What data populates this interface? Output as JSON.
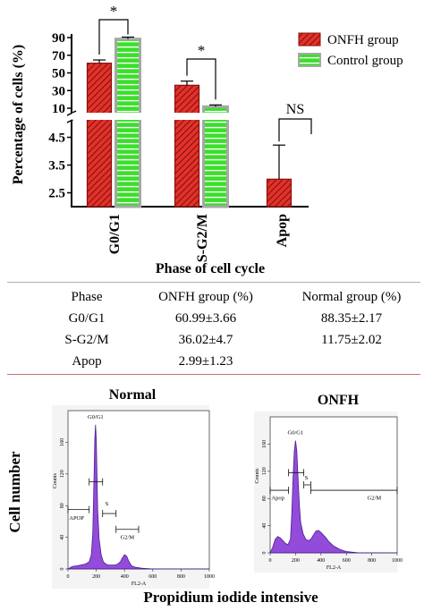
{
  "colors": {
    "onfh_fill": "#e0332b",
    "onfh_hatch": "#8b0d0d",
    "control_fill": "#3adf2a",
    "control_edge": "#a7a7a7",
    "flow_fill": "#8a3cd6",
    "flow_line": "#3a0f8a",
    "rule_top": "#b0b0b0",
    "rule_bottom": "#c87070"
  },
  "chart_data": [
    {
      "type": "bar",
      "xlabel": "Phase  of cell cycle",
      "ylabel": "Percentage of cells (%)",
      "axis_break": true,
      "upper_ticks": [
        "90",
        "70",
        "50",
        "30",
        "10"
      ],
      "lower_ticks": [
        "4.5",
        "3.5",
        "2.5"
      ],
      "categories": [
        "G0/G1",
        "S-G2/M",
        "Apop"
      ],
      "series": [
        {
          "name": "ONFH group",
          "values": [
            60.99,
            36.02,
            2.99
          ],
          "errors": [
            3.66,
            4.7,
            1.23
          ]
        },
        {
          "name": "Control group",
          "values": [
            88.35,
            11.75,
            null
          ],
          "errors": [
            2.17,
            2.02,
            null
          ]
        }
      ],
      "annotations": [
        "*",
        "*",
        "NS"
      ],
      "legend": "top-right"
    },
    {
      "type": "table",
      "columns": [
        "Phase",
        "ONFH group (%)",
        "Normal group (%)"
      ],
      "rows": [
        [
          "G0/G1",
          "60.99±3.66",
          "88.35±2.17"
        ],
        [
          "S-G2/M",
          "36.02±4.7",
          "11.75±2.02"
        ],
        [
          "Apop",
          "2.99±1.23",
          ""
        ]
      ]
    },
    {
      "type": "area",
      "title": "Normal",
      "xlabel": "FL2-A",
      "ylabel": "Counts",
      "x_ticks": [
        "0",
        "200",
        "400",
        "600",
        "800",
        "1000"
      ],
      "y_ticks": [
        "0",
        "40",
        "80",
        "120",
        "160"
      ],
      "xlim": [
        0,
        1000
      ],
      "ylim": [
        0,
        200
      ],
      "gates": [
        "G0/G1",
        "S",
        "APOP",
        "G2/M"
      ],
      "x": [
        0,
        30,
        60,
        90,
        120,
        150,
        165,
        175,
        185,
        190,
        195,
        200,
        205,
        210,
        220,
        235,
        250,
        270,
        290,
        310,
        330,
        350,
        370,
        385,
        400,
        415,
        430,
        450,
        480,
        520,
        600,
        700,
        800,
        900,
        1000
      ],
      "y": [
        0,
        3,
        4,
        5,
        6,
        9,
        18,
        45,
        120,
        165,
        182,
        165,
        120,
        75,
        38,
        18,
        9,
        6,
        5,
        5,
        5,
        6,
        9,
        14,
        18,
        16,
        10,
        4,
        2,
        1,
        0,
        0,
        0,
        0,
        0
      ]
    },
    {
      "type": "area",
      "title": "ONFH",
      "xlabel": "FL2-A",
      "ylabel": "Counts",
      "x_ticks": [
        "0",
        "200",
        "400",
        "600",
        "800",
        "1000"
      ],
      "y_ticks": [
        "0",
        "40",
        "80",
        "120",
        "160"
      ],
      "xlim": [
        0,
        1000
      ],
      "ylim": [
        0,
        200
      ],
      "gates": [
        "G0/G1",
        "S",
        "Apop",
        "G2/M"
      ],
      "x": [
        0,
        20,
        40,
        60,
        80,
        100,
        120,
        140,
        160,
        170,
        180,
        190,
        200,
        210,
        220,
        230,
        240,
        260,
        280,
        300,
        320,
        340,
        360,
        380,
        400,
        420,
        440,
        460,
        500,
        550,
        600,
        700,
        800,
        900,
        1000
      ],
      "y": [
        0,
        8,
        20,
        24,
        22,
        18,
        14,
        12,
        20,
        55,
        110,
        150,
        165,
        150,
        110,
        70,
        45,
        28,
        20,
        18,
        20,
        26,
        32,
        33,
        30,
        26,
        22,
        17,
        10,
        5,
        2,
        0,
        0,
        0,
        0
      ]
    }
  ],
  "flow_labels": {
    "y_axis": "Cell number",
    "x_axis": "Propidium iodide  intensive"
  }
}
